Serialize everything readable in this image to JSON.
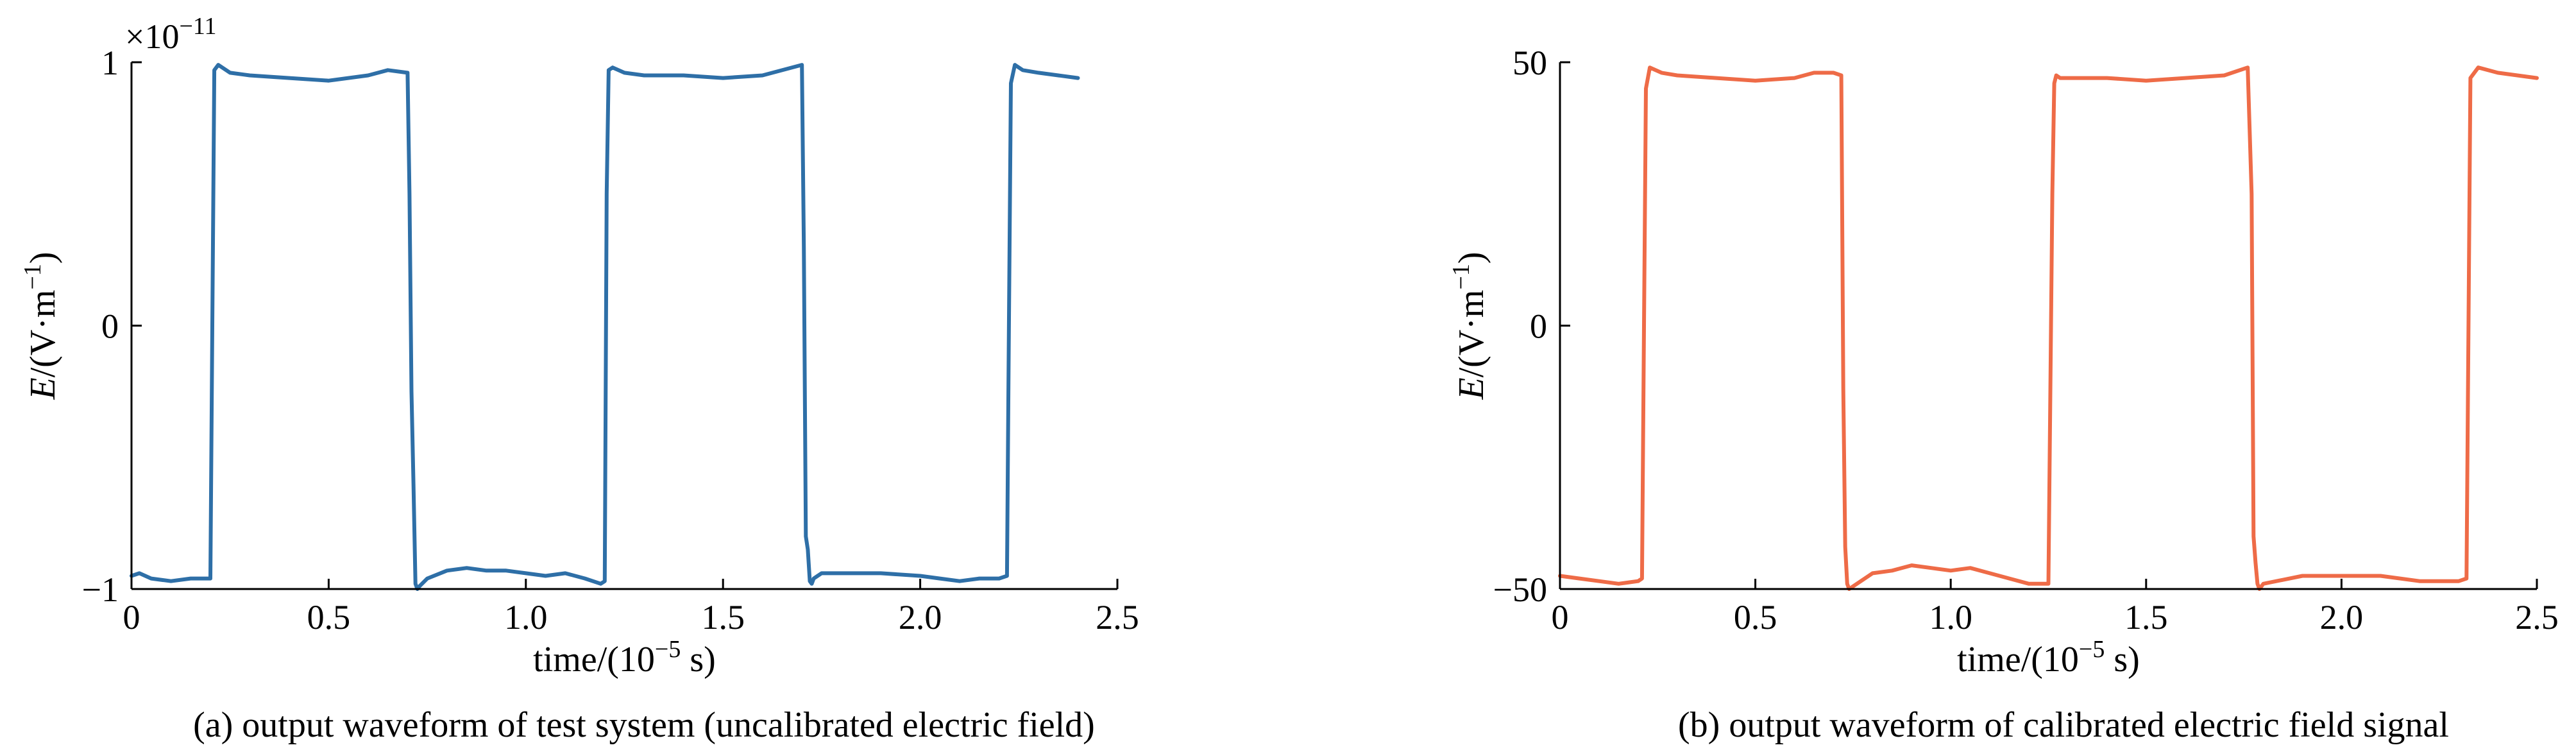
{
  "chart_data": [
    {
      "type": "line",
      "caption": "(a) output waveform of test system (uncalibrated electric field)",
      "xlabel_prefix": "time/(10",
      "xlabel_sup": "−5",
      "xlabel_suffix": " s)",
      "ylabel_var": "E",
      "ylabel_rest": "/(V·m",
      "ylabel_sup": "−1",
      "ylabel_end": ")",
      "multiplier_base": "×10",
      "multiplier_exp": "−11",
      "xlim": [
        0,
        2.5
      ],
      "ylim": [
        -1,
        1
      ],
      "xticks": [
        0,
        0.5,
        1.0,
        1.5,
        2.0,
        2.5
      ],
      "xtick_labels": [
        "0",
        "0.5",
        "1.0",
        "1.5",
        "2.0",
        "2.5"
      ],
      "yticks": [
        -1,
        0,
        1
      ],
      "ytick_labels": [
        "−1",
        "0",
        "1"
      ],
      "color": "#2E6FA7",
      "series": [
        {
          "x": [
            0,
            0.02,
            0.05,
            0.1,
            0.15,
            0.2,
            0.205,
            0.21,
            0.22,
            0.25,
            0.3,
            0.4,
            0.5,
            0.6,
            0.65,
            0.7,
            0.705,
            0.71,
            0.715,
            0.72,
            0.725,
            0.73,
            0.75,
            0.8,
            0.85,
            0.9,
            0.95,
            1.0,
            1.05,
            1.1,
            1.15,
            1.19,
            1.2,
            1.205,
            1.21,
            1.22,
            1.25,
            1.3,
            1.4,
            1.5,
            1.6,
            1.7,
            1.705,
            1.71,
            1.715,
            1.72,
            1.725,
            1.73,
            1.75,
            1.8,
            1.9,
            2.0,
            2.05,
            2.1,
            2.15,
            2.2,
            2.22,
            2.225,
            2.23,
            2.24,
            2.26,
            2.3,
            2.35,
            2.4
          ],
          "y": [
            -0.95,
            -0.94,
            -0.96,
            -0.97,
            -0.96,
            -0.96,
            0.0,
            0.97,
            0.99,
            0.96,
            0.95,
            0.94,
            0.93,
            0.95,
            0.97,
            0.96,
            0.5,
            -0.25,
            -0.6,
            -0.98,
            -1.0,
            -0.99,
            -0.96,
            -0.93,
            -0.92,
            -0.93,
            -0.93,
            -0.94,
            -0.95,
            -0.94,
            -0.96,
            -0.98,
            -0.97,
            0.5,
            0.97,
            0.98,
            0.96,
            0.95,
            0.95,
            0.94,
            0.95,
            0.99,
            0.3,
            -0.8,
            -0.85,
            -0.97,
            -0.98,
            -0.96,
            -0.94,
            -0.94,
            -0.94,
            -0.95,
            -0.96,
            -0.97,
            -0.96,
            -0.96,
            -0.95,
            0.0,
            0.92,
            0.99,
            0.97,
            0.96,
            0.95,
            0.94
          ]
        }
      ]
    },
    {
      "type": "line",
      "caption": "(b) output waveform of calibrated electric field signal",
      "xlabel_prefix": "time/(10",
      "xlabel_sup": "−5",
      "xlabel_suffix": " s)",
      "ylabel_var": "E",
      "ylabel_rest": "/(V·m",
      "ylabel_sup": "−1",
      "ylabel_end": ")",
      "xlim": [
        0,
        2.5
      ],
      "ylim": [
        -50,
        50
      ],
      "xticks": [
        0,
        0.5,
        1.0,
        1.5,
        2.0,
        2.5
      ],
      "xtick_labels": [
        "0",
        "0.5",
        "1.0",
        "1.5",
        "2.0",
        "2.5"
      ],
      "yticks": [
        -50,
        0,
        50
      ],
      "ytick_labels": [
        "−50",
        "0",
        "50"
      ],
      "color": "#EE6B47",
      "series": [
        {
          "x": [
            0,
            0.05,
            0.1,
            0.15,
            0.2,
            0.21,
            0.215,
            0.22,
            0.23,
            0.26,
            0.3,
            0.4,
            0.5,
            0.6,
            0.65,
            0.7,
            0.72,
            0.725,
            0.73,
            0.735,
            0.74,
            0.75,
            0.8,
            0.85,
            0.9,
            0.95,
            1.0,
            1.05,
            1.1,
            1.15,
            1.2,
            1.25,
            1.26,
            1.265,
            1.27,
            1.28,
            1.3,
            1.4,
            1.5,
            1.6,
            1.7,
            1.76,
            1.77,
            1.775,
            1.78,
            1.785,
            1.79,
            1.8,
            1.9,
            2.0,
            2.1,
            2.2,
            2.3,
            2.32,
            2.325,
            2.33,
            2.35,
            2.4,
            2.5
          ],
          "y": [
            -47.5,
            -48,
            -48.5,
            -49,
            -48.5,
            -48,
            0,
            45,
            49,
            48,
            47.5,
            47,
            46.5,
            47,
            48,
            48,
            47.5,
            -12,
            -42,
            -49,
            -50,
            -49.5,
            -47,
            -46.5,
            -45.5,
            -46,
            -46.5,
            -46,
            -47,
            -48,
            -49,
            -49,
            25,
            46,
            47.5,
            47,
            47,
            47,
            46.5,
            47,
            47.5,
            49,
            25,
            -40,
            -45,
            -49,
            -50,
            -49,
            -47.5,
            -47.5,
            -47.5,
            -48.5,
            -48.5,
            -48,
            0,
            47,
            49,
            48,
            47
          ]
        }
      ]
    }
  ]
}
